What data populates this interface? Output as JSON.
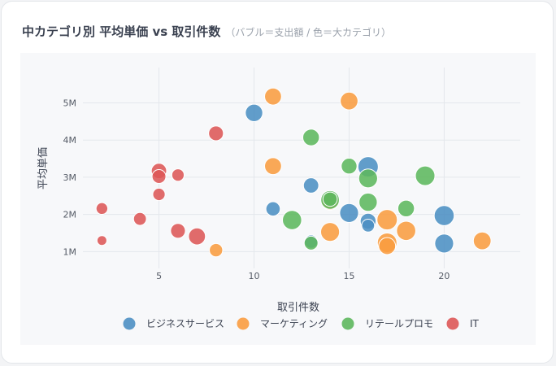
{
  "header": {
    "title": "中カテゴリ別 平均単価 vs 取引件数",
    "subtitle": "（バブル＝支出額 / 色＝大カテゴリ）"
  },
  "chart_data": {
    "type": "scatter",
    "xlabel": "取引件数",
    "ylabel": "平均単価",
    "xlim": [
      1,
      24
    ],
    "ylim": [
      0.55,
      5.95
    ],
    "xticks": [
      5,
      10,
      15,
      20
    ],
    "xtick_labels": [
      "5",
      "10",
      "15",
      "20"
    ],
    "yticks": [
      1,
      2,
      3,
      4,
      5
    ],
    "ytick_labels": [
      "1M",
      "2M",
      "3M",
      "4M",
      "5M"
    ],
    "grid": true,
    "legend_position": "bottom",
    "series": [
      {
        "name": "ビジネスサービス",
        "color": "#4c8fc3",
        "points": [
          {
            "x": 10,
            "y": 4.73,
            "size": 2.2
          },
          {
            "x": 16,
            "y": 3.28,
            "size": 3.0
          },
          {
            "x": 13,
            "y": 2.78,
            "size": 1.7
          },
          {
            "x": 11,
            "y": 2.15,
            "size": 1.5
          },
          {
            "x": 15,
            "y": 2.04,
            "size": 2.6
          },
          {
            "x": 16,
            "y": 1.82,
            "size": 1.8
          },
          {
            "x": 16,
            "y": 1.7,
            "size": 1.2
          },
          {
            "x": 20,
            "y": 1.97,
            "size": 2.9
          },
          {
            "x": 20,
            "y": 1.22,
            "size": 2.6
          },
          {
            "x": 13,
            "y": 1.27,
            "size": 1.3
          }
        ]
      },
      {
        "name": "マーケティング",
        "color": "#f99c40",
        "points": [
          {
            "x": 11,
            "y": 5.17,
            "size": 2.1
          },
          {
            "x": 15,
            "y": 5.05,
            "size": 2.3
          },
          {
            "x": 11,
            "y": 3.3,
            "size": 2.1
          },
          {
            "x": 14,
            "y": 2.35,
            "size": 2.2
          },
          {
            "x": 17,
            "y": 1.86,
            "size": 3.0
          },
          {
            "x": 14,
            "y": 1.53,
            "size": 2.6
          },
          {
            "x": 18,
            "y": 1.56,
            "size": 2.7
          },
          {
            "x": 17,
            "y": 1.24,
            "size": 2.8
          },
          {
            "x": 17,
            "y": 1.15,
            "size": 2.1
          },
          {
            "x": 22,
            "y": 1.29,
            "size": 2.3
          },
          {
            "x": 8,
            "y": 1.04,
            "size": 1.3
          }
        ]
      },
      {
        "name": "リテールプロモ",
        "color": "#5db75d",
        "points": [
          {
            "x": 13,
            "y": 4.07,
            "size": 2.0
          },
          {
            "x": 15,
            "y": 3.3,
            "size": 1.8
          },
          {
            "x": 16,
            "y": 2.97,
            "size": 2.6
          },
          {
            "x": 19,
            "y": 3.04,
            "size": 2.8
          },
          {
            "x": 14,
            "y": 2.39,
            "size": 2.5
          },
          {
            "x": 14,
            "y": 2.41,
            "size": 1.5
          },
          {
            "x": 16,
            "y": 2.33,
            "size": 2.4
          },
          {
            "x": 18,
            "y": 2.16,
            "size": 2.0
          },
          {
            "x": 12,
            "y": 1.85,
            "size": 2.7
          },
          {
            "x": 13,
            "y": 1.23,
            "size": 1.4
          }
        ]
      },
      {
        "name": "IT",
        "color": "#dd5757",
        "points": [
          {
            "x": 8,
            "y": 4.18,
            "size": 1.6
          },
          {
            "x": 5,
            "y": 3.17,
            "size": 1.7
          },
          {
            "x": 5,
            "y": 3.02,
            "size": 1.4
          },
          {
            "x": 6,
            "y": 3.06,
            "size": 1.1
          },
          {
            "x": 5,
            "y": 2.54,
            "size": 1.1
          },
          {
            "x": 2,
            "y": 2.16,
            "size": 1.0
          },
          {
            "x": 4,
            "y": 1.88,
            "size": 1.2
          },
          {
            "x": 6,
            "y": 1.56,
            "size": 1.6
          },
          {
            "x": 7,
            "y": 1.41,
            "size": 2.1
          },
          {
            "x": 2,
            "y": 1.3,
            "size": 0.7
          }
        ]
      }
    ]
  }
}
